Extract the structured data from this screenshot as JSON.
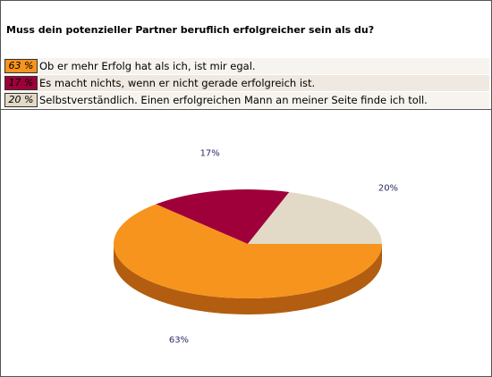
{
  "poll": {
    "question": "Muss dein potenzieller Partner beruflich erfolgreicher sein als du?"
  },
  "colors": {
    "orange": "#f7941e",
    "orange_side": "#b35d10",
    "crimson": "#a0003a",
    "crimson_side": "#4e0014",
    "beige": "#e2dac6",
    "beige_side": "#958c7a",
    "pct_text": "#2a2a6a"
  },
  "chart_data": {
    "type": "pie",
    "title": "",
    "slices": [
      {
        "label": "Ob er mehr Erfolg hat als ich, ist mir egal.",
        "value": 63,
        "pct_label": "63 %",
        "chart_label": "63%",
        "color": "#f7941e"
      },
      {
        "label": "Es macht nichts, wenn er nicht gerade erfolgreich ist.",
        "value": 17,
        "pct_label": "17 %",
        "chart_label": "17%",
        "color": "#a0003a"
      },
      {
        "label": "Selbstverständlich. Einen erfolgreichen Mann an meiner Seite finde ich toll.",
        "value": 20,
        "pct_label": "20 %",
        "chart_label": "20%",
        "color": "#e2dac6"
      }
    ]
  }
}
